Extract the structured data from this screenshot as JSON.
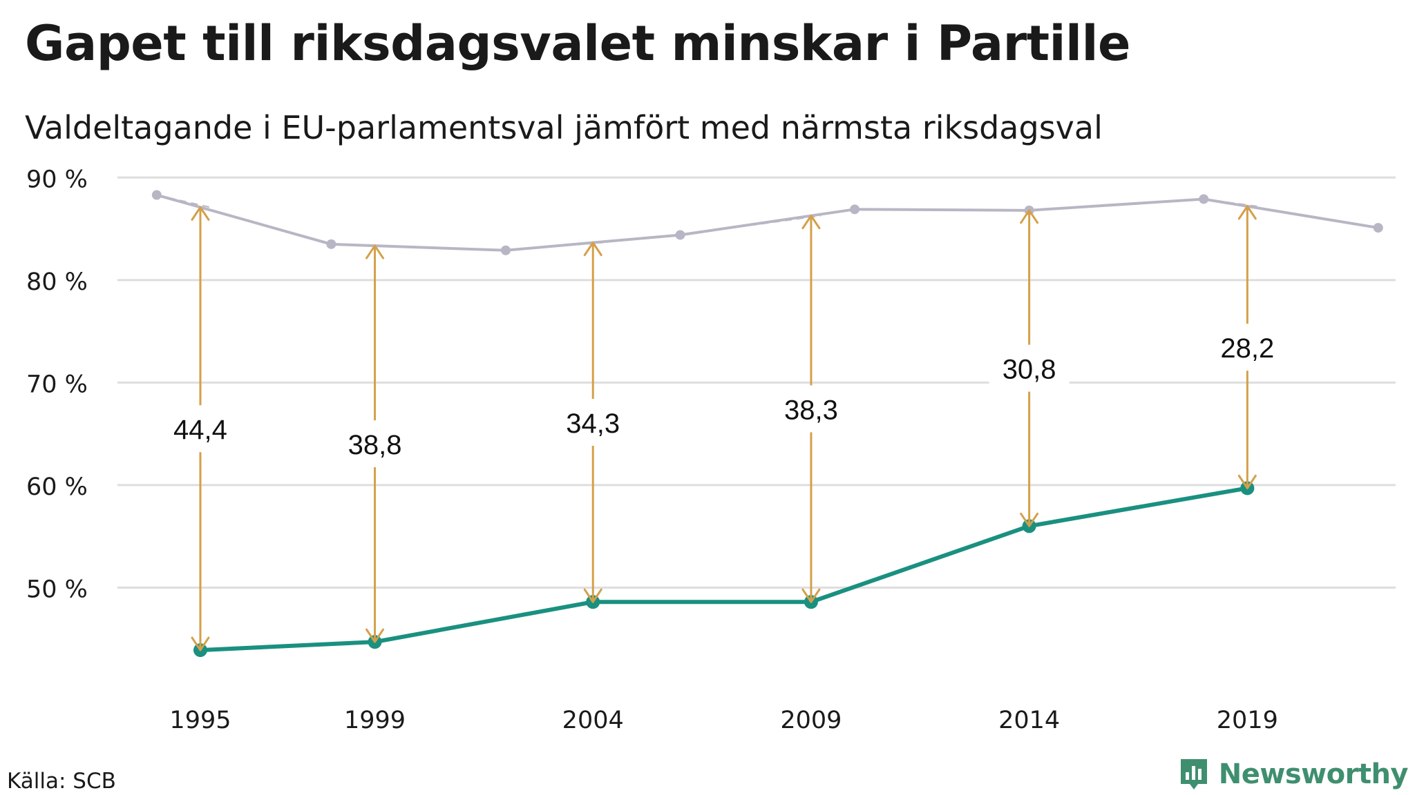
{
  "header": {
    "title": "Gapet till riksdagsvalet minskar i Partille",
    "subtitle": "Valdeltagande i EU-parlamentsval jämfört med närmsta riksdagsval"
  },
  "footer": {
    "source": "Källa: SCB",
    "logo_text": "Newsworthy"
  },
  "colors": {
    "eu_line": "#1a9080",
    "riksdag_line": "#b8b6c4",
    "gap_arrow": "#d4a04a",
    "grid": "#dedede",
    "logo": "#3f8f6f"
  },
  "icons": {
    "logo": "newsworthy-logo-icon"
  },
  "chart_data": {
    "type": "line",
    "x_ticks": [
      "1995",
      "1999",
      "2004",
      "2009",
      "2014",
      "2019"
    ],
    "y_ticks": [
      "90 %",
      "80 %",
      "70 %",
      "60 %",
      "50 %"
    ],
    "y_tick_values": [
      90,
      80,
      70,
      60,
      50
    ],
    "ylim": [
      40,
      91.5
    ],
    "xlim": [
      1993.1,
      2022.4
    ],
    "grid": true,
    "series": [
      {
        "x": [
          1994,
          1998,
          2002,
          2006,
          2010,
          2014,
          2018,
          2022
        ],
        "values": [
          88.3,
          83.5,
          82.9,
          84.4,
          86.9,
          86.8,
          87.9,
          85.1
        ]
      },
      {
        "x": [
          1995,
          1999,
          2004,
          2009,
          2014,
          2019
        ],
        "values": [
          43.9,
          44.7,
          48.6,
          48.6,
          56.0,
          59.7
        ]
      }
    ],
    "gaps": [
      {
        "x": 1995,
        "label": "44,4"
      },
      {
        "x": 1999,
        "label": "38,8"
      },
      {
        "x": 2004,
        "label": "34,3"
      },
      {
        "x": 2009,
        "label": "38,3"
      },
      {
        "x": 2014,
        "label": "30,8"
      },
      {
        "x": 2019,
        "label": "28,2"
      }
    ]
  }
}
